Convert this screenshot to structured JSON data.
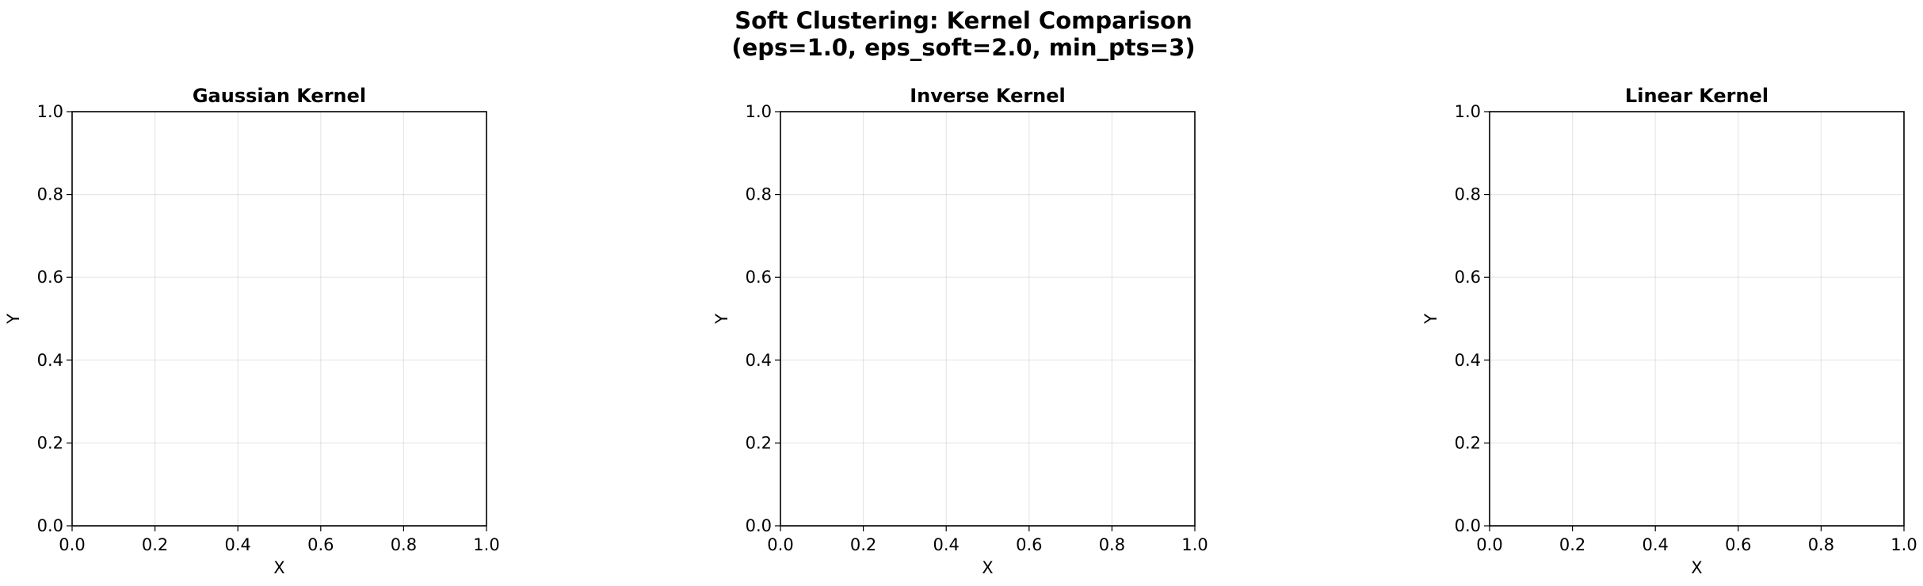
{
  "figure": {
    "suptitle_line1": "Soft Clustering: Kernel Comparison",
    "suptitle_line2": "(eps=1.0, eps_soft=2.0, min_pts=3)"
  },
  "chart_data": [
    {
      "type": "scatter",
      "title": "Gaussian Kernel",
      "xlabel": "X",
      "ylabel": "Y",
      "xlim": [
        0.0,
        1.0
      ],
      "ylim": [
        0.0,
        1.0
      ],
      "xticks": [
        "0.0",
        "0.2",
        "0.4",
        "0.6",
        "0.8",
        "1.0"
      ],
      "yticks": [
        "0.0",
        "0.2",
        "0.4",
        "0.6",
        "0.8",
        "1.0"
      ],
      "grid": true,
      "series": []
    },
    {
      "type": "scatter",
      "title": "Inverse Kernel",
      "xlabel": "X",
      "ylabel": "Y",
      "xlim": [
        0.0,
        1.0
      ],
      "ylim": [
        0.0,
        1.0
      ],
      "xticks": [
        "0.0",
        "0.2",
        "0.4",
        "0.6",
        "0.8",
        "1.0"
      ],
      "yticks": [
        "0.0",
        "0.2",
        "0.4",
        "0.6",
        "0.8",
        "1.0"
      ],
      "grid": true,
      "series": []
    },
    {
      "type": "scatter",
      "title": "Linear Kernel",
      "xlabel": "X",
      "ylabel": "Y",
      "xlim": [
        0.0,
        1.0
      ],
      "ylim": [
        0.0,
        1.0
      ],
      "xticks": [
        "0.0",
        "0.2",
        "0.4",
        "0.6",
        "0.8",
        "1.0"
      ],
      "yticks": [
        "0.0",
        "0.2",
        "0.4",
        "0.6",
        "0.8",
        "1.0"
      ],
      "grid": true,
      "series": []
    }
  ]
}
